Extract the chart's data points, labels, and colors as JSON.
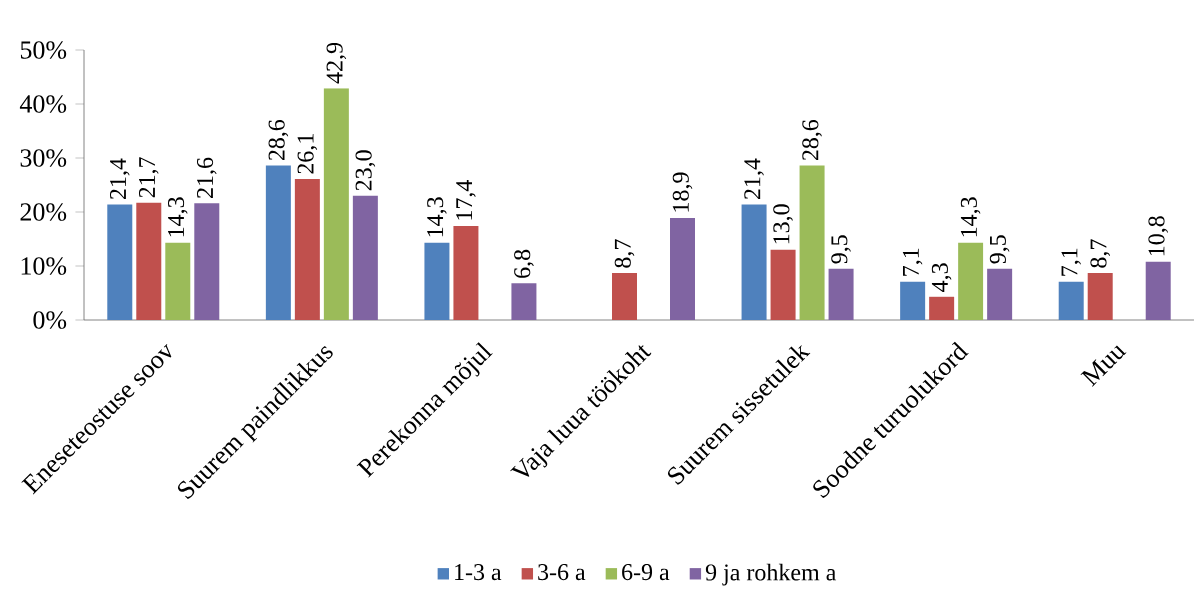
{
  "chart_data": {
    "type": "bar",
    "categories": [
      "Eneseteostuse soov",
      "Suurem paindlikkus",
      "Perekonna mõjul",
      "Vaja luua töökoht",
      "Suurem sissetulek",
      "Soodne turuolukord",
      "Muu"
    ],
    "series": [
      {
        "name": "1-3 a",
        "color": "#4f81bd",
        "values": [
          21.4,
          28.6,
          14.3,
          null,
          21.4,
          7.1,
          7.1
        ],
        "value_labels": [
          "21,4",
          "28,6",
          "14,3",
          null,
          "21,4",
          "7,1",
          "7,1"
        ]
      },
      {
        "name": "3-6 a",
        "color": "#c0504d",
        "values": [
          21.7,
          26.1,
          17.4,
          8.7,
          13.0,
          4.3,
          8.7
        ],
        "value_labels": [
          "21,7",
          "26,1",
          "17,4",
          "8,7",
          "13,0",
          "4,3",
          "8,7"
        ]
      },
      {
        "name": "6-9 a",
        "color": "#9bbb59",
        "values": [
          14.3,
          42.9,
          null,
          null,
          28.6,
          14.3,
          null
        ],
        "value_labels": [
          "14,3",
          "42,9",
          null,
          null,
          "28,6",
          "14,3",
          null
        ]
      },
      {
        "name": "9 ja rohkem a",
        "color": "#8064a2",
        "values": [
          21.6,
          23.0,
          6.8,
          18.9,
          9.5,
          9.5,
          10.8
        ],
        "value_labels": [
          "21,6",
          "23,0",
          "6,8",
          "18,9",
          "9,5",
          "9,5",
          "10,8"
        ]
      }
    ],
    "ylim": [
      0,
      50
    ],
    "yticks": [
      {
        "value": 0,
        "label": "0%"
      },
      {
        "value": 10,
        "label": "10%"
      },
      {
        "value": 20,
        "label": "20%"
      },
      {
        "value": 30,
        "label": "30%"
      },
      {
        "value": 40,
        "label": "40%"
      },
      {
        "value": 50,
        "label": "50%"
      }
    ],
    "grid": false,
    "legend": "bottom"
  }
}
